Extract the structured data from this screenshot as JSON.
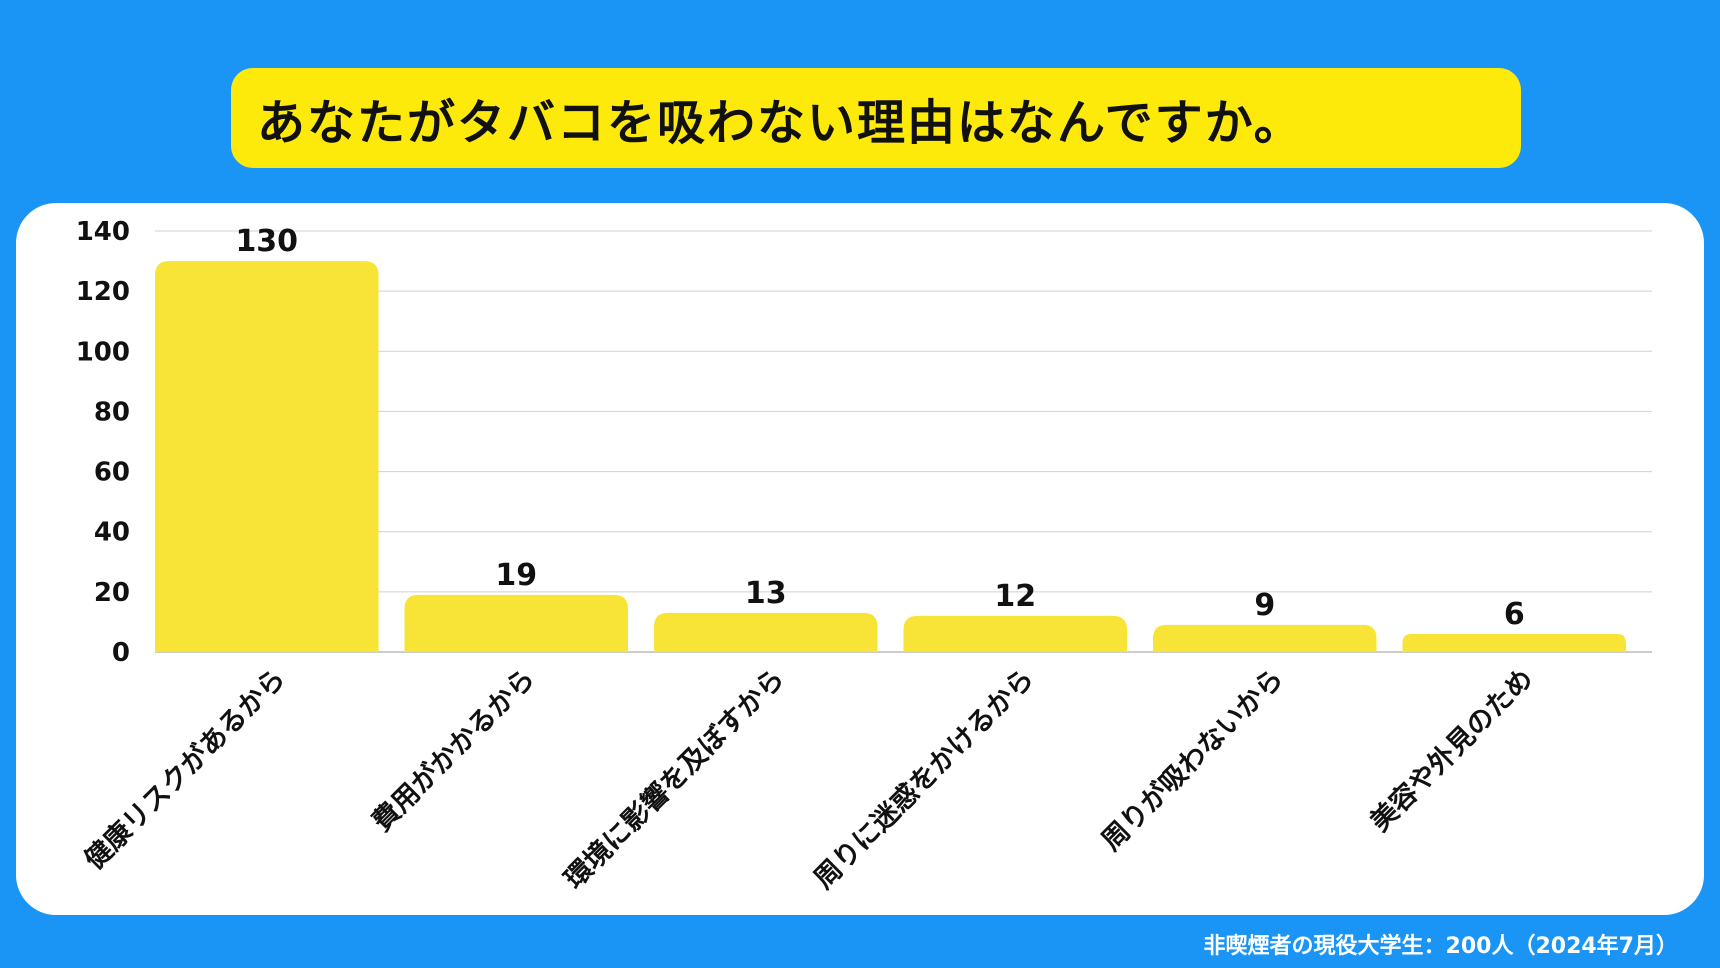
{
  "title": "あなたがタバコを吸わない理由はなんですか。",
  "footnote": "非喫煙者の現役大学生：200人（2024年7月）",
  "colors": {
    "background": "#1b95f5",
    "title_box": "#fdea0a",
    "bar": "#f8e436",
    "grid": "#d0d0d0"
  },
  "chart_data": {
    "type": "bar",
    "title": "あなたがタバコを吸わない理由はなんですか。",
    "categories": [
      "健康リスクがあるから",
      "費用がかかるから",
      "環境に影響を及ぼすから",
      "周りに迷惑をかけるから",
      "周りが吸わないから",
      "美容や外見のため"
    ],
    "values": [
      130,
      19,
      13,
      12,
      9,
      6
    ],
    "yticks": [
      0,
      20,
      40,
      60,
      80,
      100,
      120,
      140
    ],
    "ylim": [
      0,
      140
    ],
    "grid": true,
    "data_labels": true,
    "xlabel": "",
    "ylabel": ""
  }
}
